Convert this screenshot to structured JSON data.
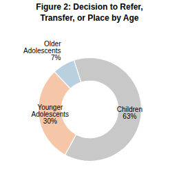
{
  "chart_data": {
    "type": "donut",
    "title": "Figure 2: Decision to Refer,\nTransfer, or Place by Age",
    "categories": [
      "Children",
      "Younger\nAdolescents",
      "Older\nAdolescents"
    ],
    "values": [
      63,
      30,
      7
    ],
    "value_labels": [
      "63%",
      "30%",
      "7%"
    ],
    "colors": [
      "#c8c8c8",
      "#f5c6a8",
      "#b8d0e0"
    ],
    "data_labels": true
  }
}
